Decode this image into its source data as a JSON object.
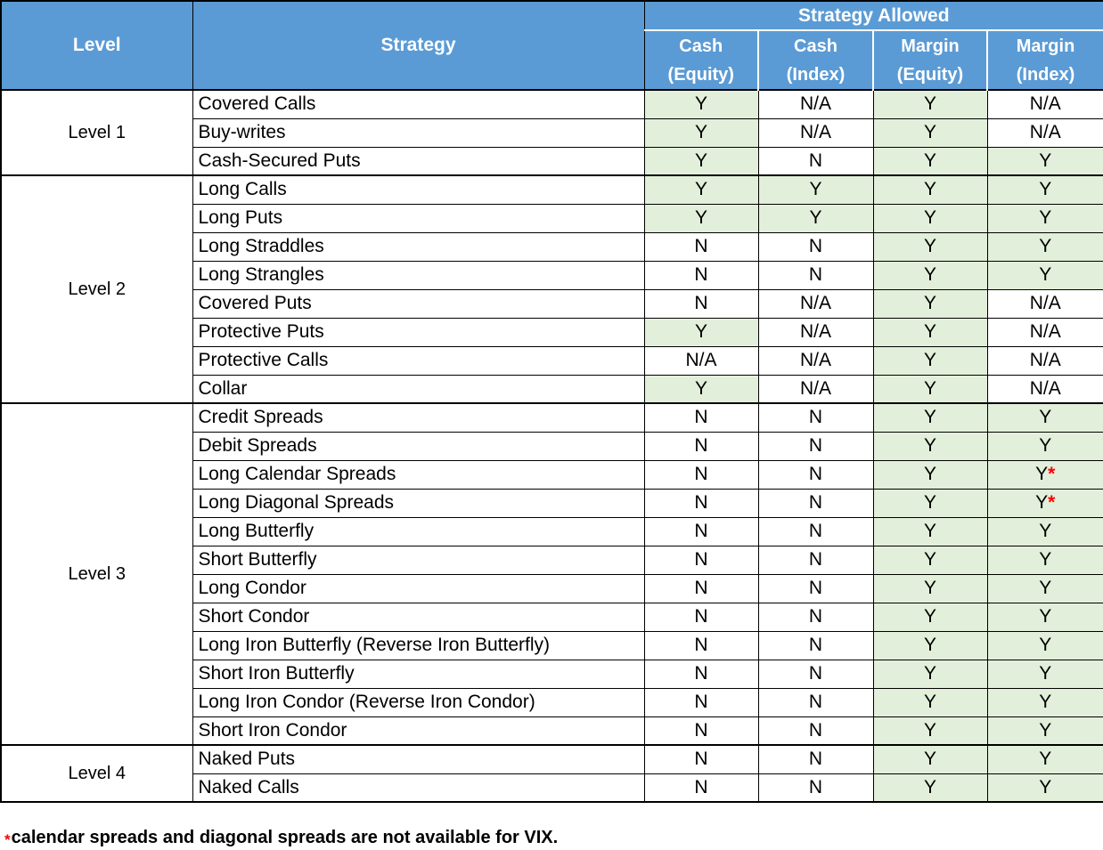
{
  "header": {
    "level_label": "Level",
    "strategy_label": "Strategy",
    "allowed_label": "Strategy Allowed",
    "sub_columns": [
      {
        "line1": "Cash",
        "line2": "(Equity)"
      },
      {
        "line1": "Cash",
        "line2": "(Index)"
      },
      {
        "line1": "Margin",
        "line2": "(Equity)"
      },
      {
        "line1": "Margin",
        "line2": "(Index)"
      }
    ]
  },
  "groups": [
    {
      "level": "Level 1",
      "rows": [
        {
          "strategy": "Covered Calls",
          "values": [
            "Y",
            "N/A",
            "Y",
            "N/A"
          ]
        },
        {
          "strategy": "Buy-writes",
          "values": [
            "Y",
            "N/A",
            "Y",
            "N/A"
          ]
        },
        {
          "strategy": "Cash-Secured Puts",
          "values": [
            "Y",
            "N",
            "Y",
            "Y"
          ]
        }
      ]
    },
    {
      "level": "Level 2",
      "rows": [
        {
          "strategy": "Long Calls",
          "values": [
            "Y",
            "Y",
            "Y",
            "Y"
          ]
        },
        {
          "strategy": "Long Puts",
          "values": [
            "Y",
            "Y",
            "Y",
            "Y"
          ]
        },
        {
          "strategy": "Long Straddles",
          "values": [
            "N",
            "N",
            "Y",
            "Y"
          ]
        },
        {
          "strategy": "Long Strangles",
          "values": [
            "N",
            "N",
            "Y",
            "Y"
          ]
        },
        {
          "strategy": "Covered Puts",
          "values": [
            "N",
            "N/A",
            "Y",
            "N/A"
          ]
        },
        {
          "strategy": "Protective Puts",
          "values": [
            "Y",
            "N/A",
            "Y",
            "N/A"
          ]
        },
        {
          "strategy": "Protective Calls",
          "values": [
            "N/A",
            "N/A",
            "Y",
            "N/A"
          ]
        },
        {
          "strategy": "Collar",
          "values": [
            "Y",
            "N/A",
            "Y",
            "N/A"
          ]
        }
      ]
    },
    {
      "level": "Level 3",
      "rows": [
        {
          "strategy": "Credit Spreads",
          "values": [
            "N",
            "N",
            "Y",
            "Y"
          ]
        },
        {
          "strategy": "Debit Spreads",
          "values": [
            "N",
            "N",
            "Y",
            "Y"
          ]
        },
        {
          "strategy": "Long Calendar Spreads",
          "values": [
            "N",
            "N",
            "Y",
            "Y*"
          ]
        },
        {
          "strategy": "Long Diagonal Spreads",
          "values": [
            "N",
            "N",
            "Y",
            "Y*"
          ]
        },
        {
          "strategy": "Long Butterfly",
          "values": [
            "N",
            "N",
            "Y",
            "Y"
          ]
        },
        {
          "strategy": "Short Butterfly",
          "values": [
            "N",
            "N",
            "Y",
            "Y"
          ]
        },
        {
          "strategy": "Long Condor",
          "values": [
            "N",
            "N",
            "Y",
            "Y"
          ]
        },
        {
          "strategy": "Short Condor",
          "values": [
            "N",
            "N",
            "Y",
            "Y"
          ]
        },
        {
          "strategy": "Long Iron Butterfly (Reverse Iron Butterfly)",
          "values": [
            "N",
            "N",
            "Y",
            "Y"
          ]
        },
        {
          "strategy": "Short Iron Butterfly",
          "values": [
            "N",
            "N",
            "Y",
            "Y"
          ]
        },
        {
          "strategy": "Long Iron Condor (Reverse Iron Condor)",
          "values": [
            "N",
            "N",
            "Y",
            "Y"
          ]
        },
        {
          "strategy": "Short Iron Condor",
          "values": [
            "N",
            "N",
            "Y",
            "Y"
          ]
        }
      ]
    },
    {
      "level": "Level 4",
      "rows": [
        {
          "strategy": "Naked Puts",
          "values": [
            "N",
            "N",
            "Y",
            "Y"
          ]
        },
        {
          "strategy": "Naked Calls",
          "values": [
            "N",
            "N",
            "Y",
            "Y"
          ]
        }
      ]
    }
  ],
  "footnote": {
    "marker": "*",
    "text": "calendar spreads and diagonal spreads are not available for VIX."
  },
  "colors": {
    "header_bg": "#5B9BD5",
    "header_text": "#FFFFFF",
    "allowed_cell_bg": "#E2EFDA",
    "marker_red": "#FF0000",
    "border": "#000000"
  }
}
